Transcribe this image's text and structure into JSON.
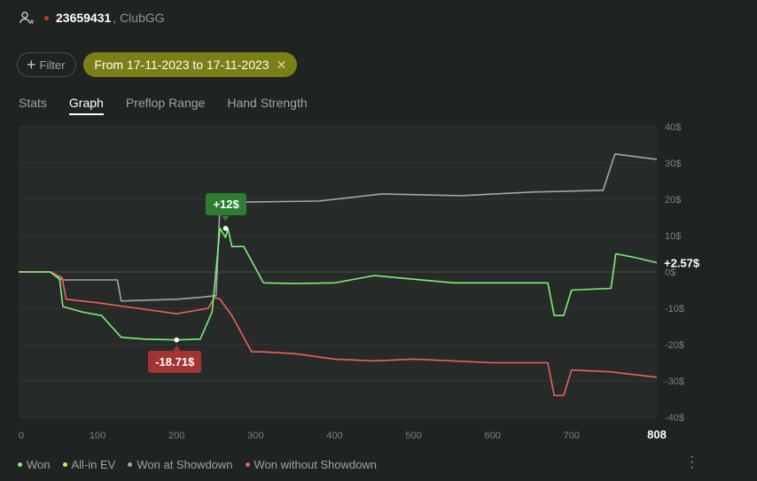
{
  "header": {
    "player_id": "23659431",
    "club": ", ClubGG"
  },
  "filters": {
    "filter_label": "Filter",
    "date_range": "From 17-11-2023 to 17-11-2023"
  },
  "tabs": [
    {
      "label": "Stats",
      "active": false
    },
    {
      "label": "Graph",
      "active": true
    },
    {
      "label": "Preflop Range",
      "active": false
    },
    {
      "label": "Hand Strength",
      "active": false
    }
  ],
  "chart_data": {
    "type": "line",
    "xlim": [
      0,
      808
    ],
    "ylim": [
      -40,
      40
    ],
    "x_ticks": [
      "0",
      "100",
      "200",
      "300",
      "400",
      "500",
      "600",
      "700"
    ],
    "x_ticks_values": [
      0,
      100,
      200,
      300,
      400,
      500,
      600,
      700
    ],
    "x_end_label": "808",
    "y_ticks": [
      "40$",
      "30$",
      "20$",
      "10$",
      "0$",
      "-10$",
      "-20$",
      "-30$",
      "-40$"
    ],
    "y_ticks_values": [
      40,
      30,
      20,
      10,
      0,
      -10,
      -20,
      -30,
      -40
    ],
    "colors": {
      "won": "#7df07a",
      "allin": "#e5e14a",
      "showdown": "#a6a6a6",
      "noshowdown": "#f0605a"
    },
    "series": [
      {
        "name": "Won",
        "x": [
          0,
          40,
          52,
          56,
          80,
          105,
          130,
          160,
          200,
          230,
          245,
          255,
          262,
          265,
          270,
          285,
          310,
          350,
          400,
          450,
          500,
          550,
          600,
          670,
          678,
          690,
          700,
          750,
          756,
          780,
          808
        ],
        "y": [
          0,
          0,
          -2,
          -9.5,
          -11,
          -12,
          -18,
          -18.5,
          -18.71,
          -18.5,
          -11,
          12,
          9.5,
          12,
          7,
          7,
          -3,
          -3.2,
          -3,
          -1,
          -2,
          -3,
          -3,
          -3,
          -12,
          -12,
          -5,
          -4.5,
          5,
          4,
          2.57
        ]
      },
      {
        "name": "Won at Showdown",
        "x": [
          0,
          40,
          55,
          125,
          130,
          200,
          230,
          250,
          255,
          300,
          380,
          460,
          560,
          650,
          740,
          755,
          808
        ],
        "y": [
          0,
          0,
          -2.2,
          -2.2,
          -8,
          -7.5,
          -7,
          -6.5,
          19.2,
          19.3,
          19.5,
          21.5,
          21,
          22,
          22.5,
          32.5,
          31
        ]
      },
      {
        "name": "Won without Showdown",
        "x": [
          0,
          40,
          55,
          60,
          100,
          150,
          200,
          240,
          248,
          255,
          270,
          295,
          310,
          350,
          400,
          450,
          500,
          550,
          600,
          670,
          678,
          690,
          700,
          750,
          808
        ],
        "y": [
          0,
          0,
          -1.5,
          -7.5,
          -8.5,
          -10,
          -11.5,
          -10,
          -7,
          -7.5,
          -12,
          -22,
          -22,
          -22.5,
          -24,
          -24.5,
          -24,
          -24.5,
          -25,
          -25,
          -34,
          -34,
          -27,
          -27.5,
          -29
        ]
      }
    ],
    "annotations": {
      "max_label": "+12$",
      "max_point": {
        "x": 262,
        "y": 12
      },
      "min_label": "-18.71$",
      "min_point": {
        "x": 200,
        "y": -18.71
      },
      "end_label": "+2.57$"
    }
  },
  "legend": [
    {
      "label": "Won",
      "color": "#7df07a"
    },
    {
      "label": "All-in EV",
      "color": "#e5e14a"
    },
    {
      "label": "Won at Showdown",
      "color": "#a6a6a6"
    },
    {
      "label": "Won without Showdown",
      "color": "#f0605a"
    }
  ]
}
